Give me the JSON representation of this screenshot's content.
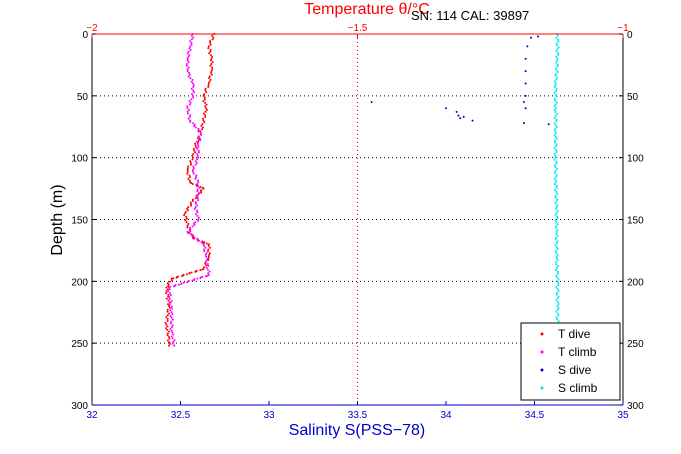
{
  "chart_data": {
    "type": "scatter",
    "title": "Temperature θ/°C",
    "annotation": "SN: 114  CAL: 39897",
    "xlabel": "Salinity S(PSS−78)",
    "ylabel": "Depth (m)",
    "x_bottom": {
      "range": [
        32,
        35
      ],
      "ticks": [
        "32",
        "32.5",
        "33",
        "33.5",
        "34",
        "34.5",
        "35"
      ]
    },
    "x_top": {
      "range": [
        -2,
        -1
      ],
      "ticks": [
        "−2",
        "−1.5",
        "−1"
      ]
    },
    "y": {
      "range": [
        0,
        300
      ],
      "reversed": true,
      "ticks": [
        "0",
        "50",
        "100",
        "150",
        "200",
        "250",
        "300"
      ]
    },
    "grid": "dotted at depth ticks and temperature −1.5",
    "legend_position": "bottom-right",
    "colors": {
      "t_axis": "#ff0000",
      "s_axis": "#0000cc",
      "t_dive": "#ff0000",
      "t_climb": "#ff00ff",
      "s_dive": "#0000cc",
      "s_climb": "#00e5ee"
    },
    "series": [
      {
        "name": "T dive",
        "axis": "temperature",
        "color": "#ff0000",
        "points": [
          [
            -1.77,
            0
          ],
          [
            -1.78,
            10
          ],
          [
            -1.775,
            20
          ],
          [
            -1.775,
            30
          ],
          [
            -1.78,
            40
          ],
          [
            -1.79,
            50
          ],
          [
            -1.785,
            60
          ],
          [
            -1.79,
            70
          ],
          [
            -1.795,
            80
          ],
          [
            -1.805,
            90
          ],
          [
            -1.81,
            100
          ],
          [
            -1.82,
            110
          ],
          [
            -1.815,
            120
          ],
          [
            -1.79,
            125
          ],
          [
            -1.81,
            135
          ],
          [
            -1.825,
            145
          ],
          [
            -1.82,
            155
          ],
          [
            -1.81,
            165
          ],
          [
            -1.78,
            170
          ],
          [
            -1.78,
            180
          ],
          [
            -1.79,
            190
          ],
          [
            -1.85,
            198
          ],
          [
            -1.86,
            205
          ],
          [
            -1.855,
            220
          ],
          [
            -1.86,
            235
          ],
          [
            -1.855,
            245
          ],
          [
            -1.855,
            252
          ]
        ]
      },
      {
        "name": "T climb",
        "axis": "temperature",
        "color": "#ff00ff",
        "points": [
          [
            -1.845,
            252
          ],
          [
            -1.85,
            240
          ],
          [
            -1.85,
            225
          ],
          [
            -1.855,
            205
          ],
          [
            -1.78,
            195
          ],
          [
            -1.785,
            180
          ],
          [
            -1.79,
            170
          ],
          [
            -1.82,
            160
          ],
          [
            -1.8,
            150
          ],
          [
            -1.805,
            140
          ],
          [
            -1.8,
            130
          ],
          [
            -1.8,
            120
          ],
          [
            -1.81,
            110
          ],
          [
            -1.8,
            100
          ],
          [
            -1.8,
            90
          ],
          [
            -1.795,
            80
          ],
          [
            -1.815,
            70
          ],
          [
            -1.82,
            60
          ],
          [
            -1.81,
            50
          ],
          [
            -1.81,
            40
          ],
          [
            -1.82,
            30
          ],
          [
            -1.82,
            20
          ],
          [
            -1.815,
            10
          ],
          [
            -1.81,
            0
          ]
        ]
      },
      {
        "name": "S dive",
        "axis": "salinity",
        "color": "#0000cc",
        "points": [
          [
            34.52,
            2
          ],
          [
            34.48,
            3
          ],
          [
            34.46,
            10
          ],
          [
            34.45,
            20
          ],
          [
            34.45,
            30
          ],
          [
            34.45,
            40
          ],
          [
            34.45,
            50
          ],
          [
            34.44,
            55
          ],
          [
            34.45,
            60
          ],
          [
            34.44,
            72
          ],
          [
            33.58,
            55
          ],
          [
            34.0,
            60
          ],
          [
            34.06,
            63
          ],
          [
            34.07,
            66
          ],
          [
            34.08,
            68
          ],
          [
            34.1,
            67
          ],
          [
            34.15,
            70
          ],
          [
            34.58,
            73
          ]
        ]
      },
      {
        "name": "S climb",
        "axis": "salinity",
        "color": "#00e5ee",
        "points": [
          [
            34.63,
            0
          ],
          [
            34.63,
            20
          ],
          [
            34.62,
            40
          ],
          [
            34.62,
            60
          ],
          [
            34.62,
            80
          ],
          [
            34.62,
            100
          ],
          [
            34.62,
            120
          ],
          [
            34.625,
            140
          ],
          [
            34.625,
            160
          ],
          [
            34.625,
            180
          ],
          [
            34.63,
            200
          ],
          [
            34.63,
            220
          ],
          [
            34.63,
            240
          ],
          [
            34.63,
            252
          ]
        ]
      }
    ]
  }
}
